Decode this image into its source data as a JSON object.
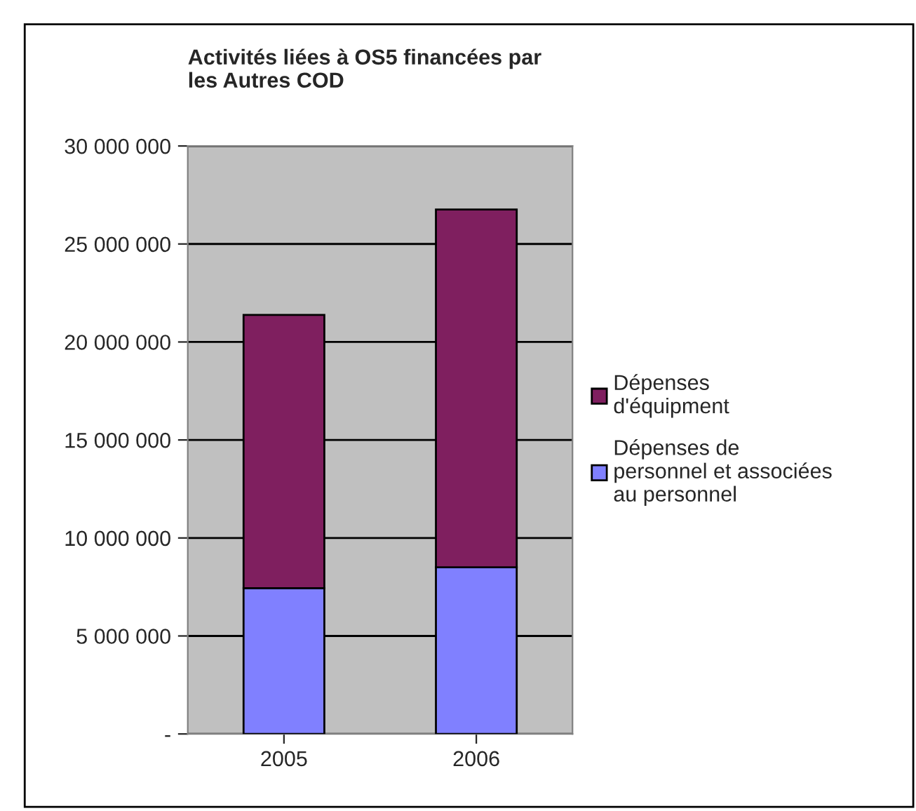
{
  "chart_data": {
    "type": "bar",
    "title": "Activités liées à OS5 financées par\nles Autres COD",
    "categories": [
      "2005",
      "2006"
    ],
    "stacked": true,
    "series": [
      {
        "name": "Dépenses de\npersonnel et associées\nau personnel",
        "color": "#8080ff",
        "values": [
          7440000,
          8500000
        ]
      },
      {
        "name": "Dépenses\nd'équipment",
        "color": "#7f1f5f",
        "values": [
          13940000,
          18260000
        ]
      }
    ],
    "ylim": [
      0,
      30000000
    ],
    "yticks": [
      {
        "value": 0,
        "label": "-"
      },
      {
        "value": 5000000,
        "label": "5 000 000"
      },
      {
        "value": 10000000,
        "label": "10 000 000"
      },
      {
        "value": 15000000,
        "label": "15 000 000"
      },
      {
        "value": 20000000,
        "label": "20 000 000"
      },
      {
        "value": 25000000,
        "label": "25 000 000"
      },
      {
        "value": 30000000,
        "label": "30 000 000"
      }
    ],
    "grid": "y",
    "legend": "right"
  }
}
